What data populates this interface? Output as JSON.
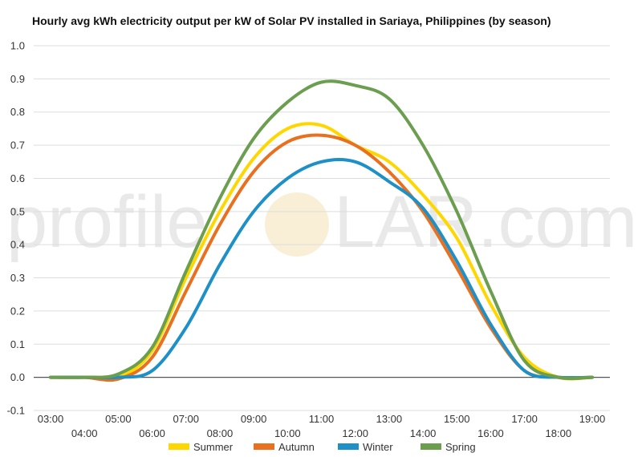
{
  "chart_data": {
    "type": "line",
    "title": "Hourly avg kWh electricity output per kW of Solar PV installed in Sariaya, Philippines (by season)",
    "xlabel": "",
    "ylabel": "",
    "ylim": [
      -0.1,
      1.0
    ],
    "y_ticks": [
      "1.0",
      "0.9",
      "0.8",
      "0.7",
      "0.6",
      "0.5",
      "0.4",
      "0.3",
      "0.2",
      "0.1",
      "0.0",
      "-0.1"
    ],
    "y_tick_values": [
      1.0,
      0.9,
      0.8,
      0.7,
      0.6,
      0.5,
      0.4,
      0.3,
      0.2,
      0.1,
      0.0,
      -0.1
    ],
    "x": [
      "03:00",
      "04:00",
      "05:00",
      "06:00",
      "07:00",
      "08:00",
      "09:00",
      "10:00",
      "11:00",
      "12:00",
      "13:00",
      "14:00",
      "15:00",
      "16:00",
      "17:00",
      "18:00",
      "19:00"
    ],
    "grid": true,
    "legend_position": "bottom",
    "series": [
      {
        "name": "Summer",
        "color": "#FFD700",
        "values": [
          0,
          0,
          0,
          0.08,
          0.3,
          0.5,
          0.66,
          0.75,
          0.76,
          0.7,
          0.65,
          0.55,
          0.42,
          0.22,
          0.06,
          0,
          0
        ]
      },
      {
        "name": "Autumn",
        "color": "#E8701F",
        "values": [
          0,
          0,
          -0.005,
          0.06,
          0.26,
          0.46,
          0.62,
          0.71,
          0.73,
          0.7,
          0.62,
          0.5,
          0.33,
          0.15,
          0.02,
          0,
          0
        ]
      },
      {
        "name": "Winter",
        "color": "#1E90C8",
        "values": [
          0,
          0,
          0,
          0.02,
          0.15,
          0.34,
          0.5,
          0.6,
          0.65,
          0.65,
          0.59,
          0.51,
          0.35,
          0.16,
          0.02,
          0,
          0
        ]
      },
      {
        "name": "Spring",
        "color": "#6B9E4E",
        "values": [
          0,
          0,
          0.01,
          0.09,
          0.32,
          0.54,
          0.72,
          0.83,
          0.89,
          0.88,
          0.84,
          0.7,
          0.5,
          0.26,
          0.05,
          0,
          0
        ]
      }
    ]
  },
  "watermark": {
    "left": "profile",
    "right": "LAR.com"
  }
}
